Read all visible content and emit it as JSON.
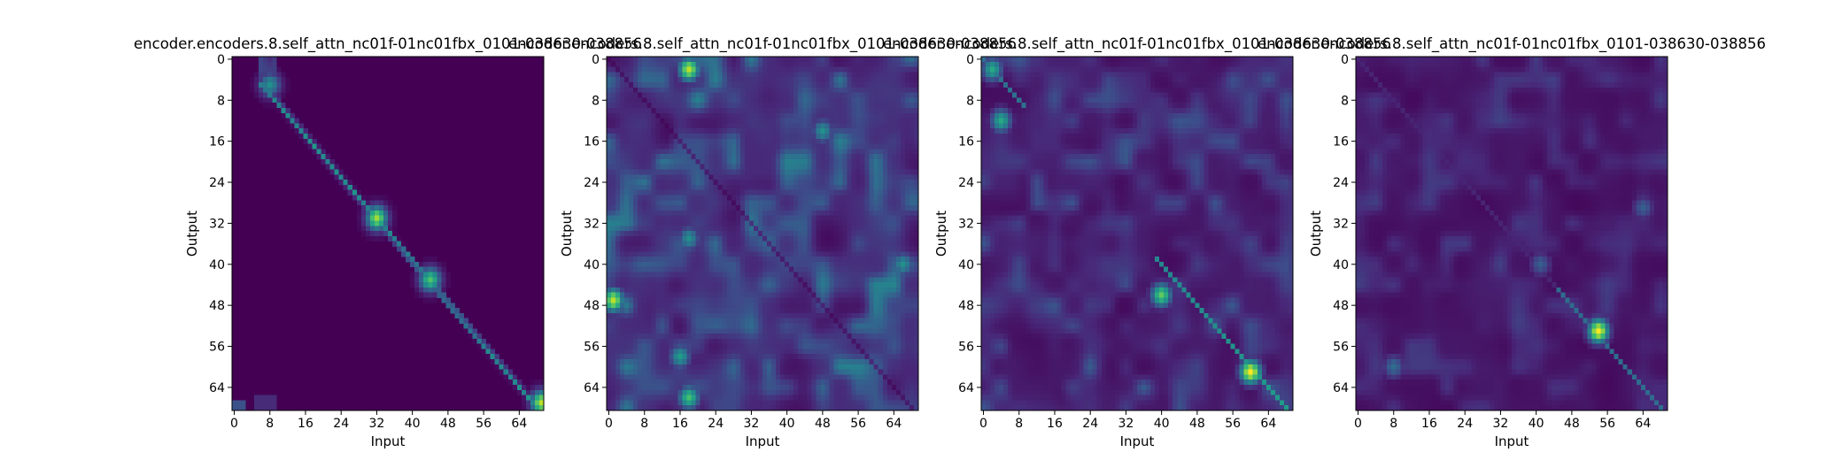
{
  "colors": {
    "low": "#440154",
    "stops": [
      "#440154",
      "#482878",
      "#3e4989",
      "#31688e",
      "#26828e",
      "#1f9e89",
      "#35b779",
      "#6ece58",
      "#b5de2b",
      "#fde725"
    ]
  },
  "chart_data": [
    {
      "type": "heatmap",
      "title": "encoder.encoders.8.self_attn_nc01f-01nc01fbx_0101-038630-038856",
      "xlabel": "Input",
      "ylabel": "Output",
      "x_ticks": [
        "0",
        "8",
        "16",
        "24",
        "32",
        "40",
        "48",
        "56",
        "64"
      ],
      "y_ticks": [
        "0",
        "8",
        "16",
        "24",
        "32",
        "40",
        "48",
        "56",
        "64"
      ],
      "grid_size": [
        69,
        70
      ],
      "pattern": "sharp monotonic diagonal alignment from (9,5) to (69,68); brightest cells near output 31-32 and bottom-right corner; faint blob near input 7-8, output 0-3",
      "hotspots": [
        {
          "input": 8,
          "output": 5,
          "value": 0.55
        },
        {
          "input": 32,
          "output": 31,
          "value": 0.95
        },
        {
          "input": 44,
          "output": 43,
          "value": 0.8
        },
        {
          "input": 69,
          "output": 67,
          "value": 1.0
        }
      ]
    },
    {
      "type": "heatmap",
      "title": "encoder.encoders.8.self_attn_nc01f-01nc01fbx_0101-038630-038856",
      "xlabel": "Input",
      "ylabel": "Output",
      "x_ticks": [
        "0",
        "8",
        "16",
        "24",
        "32",
        "40",
        "48",
        "56",
        "64"
      ],
      "y_ticks": [
        "0",
        "8",
        "16",
        "24",
        "32",
        "40",
        "48",
        "56",
        "64"
      ],
      "grid_size": [
        69,
        70
      ],
      "pattern": "diffuse attention with blobs; faint dark diagonal",
      "hotspots": [
        {
          "input": 18,
          "output": 2,
          "value": 0.9
        },
        {
          "input": 1,
          "output": 47,
          "value": 0.9
        },
        {
          "input": 18,
          "output": 66,
          "value": 0.7
        },
        {
          "input": 16,
          "output": 58,
          "value": 0.55
        },
        {
          "input": 18,
          "output": 35,
          "value": 0.5
        },
        {
          "input": 48,
          "output": 14,
          "value": 0.5
        },
        {
          "input": 66,
          "output": 40,
          "value": 0.5
        }
      ]
    },
    {
      "type": "heatmap",
      "title": "encoder.encoders.8.self_attn_nc01f-01nc01fbx_0101-038630-038856",
      "xlabel": "Input",
      "ylabel": "Output",
      "x_ticks": [
        "0",
        "8",
        "16",
        "24",
        "32",
        "40",
        "48",
        "56",
        "64"
      ],
      "y_ticks": [
        "0",
        "8",
        "16",
        "24",
        "32",
        "40",
        "48",
        "56",
        "64"
      ],
      "grid_size": [
        69,
        70
      ],
      "pattern": "bright diagonal near top-left and from output 40 to bottom-right; blobs mid-panel",
      "hotspots": [
        {
          "input": 60,
          "output": 61,
          "value": 1.0
        },
        {
          "input": 40,
          "output": 46,
          "value": 0.75
        },
        {
          "input": 4,
          "output": 12,
          "value": 0.6
        },
        {
          "input": 2,
          "output": 2,
          "value": 0.6
        }
      ]
    },
    {
      "type": "heatmap",
      "title": "encoder.encoders.8.self_attn_nc01f-01nc01fbx_0101-038630-038856",
      "xlabel": "Input",
      "ylabel": "Output",
      "x_ticks": [
        "0",
        "8",
        "16",
        "24",
        "32",
        "40",
        "48",
        "56",
        "64"
      ],
      "y_ticks": [
        "0",
        "8",
        "16",
        "24",
        "32",
        "40",
        "48",
        "56",
        "64"
      ],
      "grid_size": [
        69,
        70
      ],
      "pattern": "mostly dark; faint diagonal; bright spot at input 54, output 53",
      "hotspots": [
        {
          "input": 54,
          "output": 53,
          "value": 1.0
        },
        {
          "input": 8,
          "output": 60,
          "value": 0.35
        },
        {
          "input": 41,
          "output": 40,
          "value": 0.3
        },
        {
          "input": 64,
          "output": 29,
          "value": 0.3
        }
      ]
    }
  ]
}
